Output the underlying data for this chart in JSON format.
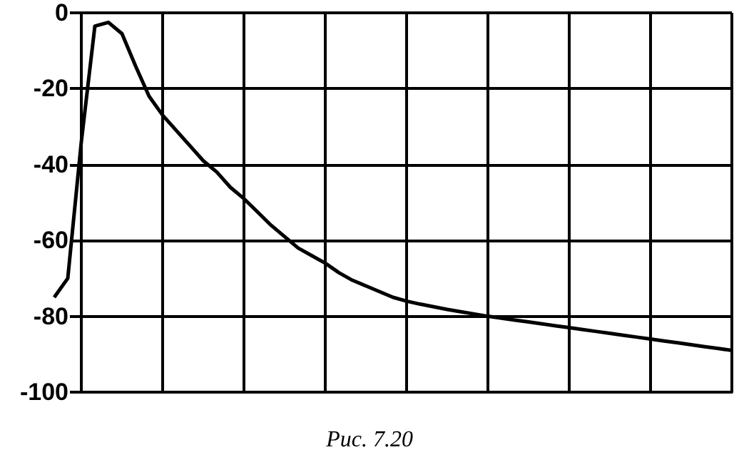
{
  "chart_data": {
    "type": "line",
    "annotations": [
      "Рис. 7.20"
    ],
    "categories": [
      null,
      null,
      null,
      null,
      null,
      null,
      null,
      null,
      null,
      null,
      null,
      null,
      null,
      null,
      null,
      null,
      null,
      null,
      null,
      null,
      null,
      null,
      null,
      null,
      null,
      null,
      null,
      null,
      null,
      null,
      null,
      null,
      null,
      null,
      null,
      null,
      null,
      null,
      null,
      null,
      null,
      null,
      null,
      null,
      null,
      null,
      null,
      null,
      null,
      null,
      null
    ],
    "series": [
      {
        "color": "#000000",
        "values": [
          -75,
          -70,
          -34,
          -3.5,
          -2.5,
          -5.5,
          -14,
          -22,
          -27,
          -31,
          -35,
          -39,
          -42,
          -46,
          -49,
          -52.5,
          -56,
          -59,
          -62,
          -64,
          -66,
          -68.5,
          -70.5,
          -72,
          -73.5,
          -75,
          -76,
          -76.8,
          -77.5,
          -78.2,
          -78.8,
          -79.4,
          -80,
          -80.5,
          -81,
          -81.5,
          -82,
          -82.5,
          -83,
          -83.5,
          -84,
          -84.5,
          -85,
          -85.5,
          -86,
          -86.5,
          -87,
          -87.5,
          -88,
          -88.5,
          -89
        ]
      }
    ],
    "ylim": [
      -100,
      0
    ],
    "yticks": [
      -100,
      -80,
      -60,
      -40,
      -20,
      0
    ],
    "tick_labels": "y",
    "grid": true,
    "marker": "none",
    "line_style": "solid"
  }
}
